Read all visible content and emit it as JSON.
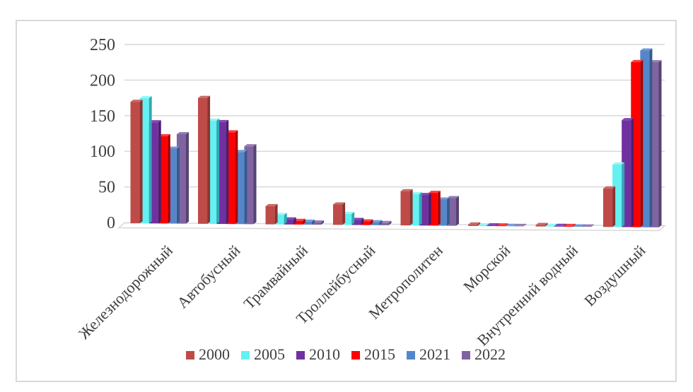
{
  "chart_data": {
    "type": "bar",
    "subtype": "3d-clustered-column",
    "title": "",
    "xlabel": "",
    "ylabel": "",
    "categories": [
      "Железнодорожный",
      "Автобусный",
      "Трамвайный",
      "Троллейбусный",
      "Метрополитен",
      "Морской",
      "Внутренний водный",
      "Воздушный"
    ],
    "series": [
      {
        "name": "2000",
        "color": "#BE4B48",
        "side_color": "#8B3431",
        "top_color": "#C96A66",
        "values": [
          167,
          173,
          25,
          28,
          47,
          2,
          2,
          53
        ]
      },
      {
        "name": "2005",
        "color": "#63F1F1",
        "side_color": "#2FA9B4",
        "top_color": "#97F7F7",
        "values": [
          172,
          142,
          13,
          15,
          43,
          1,
          1,
          86
        ]
      },
      {
        "name": "2010",
        "color": "#7030A0",
        "side_color": "#4A1F6E",
        "top_color": "#8546B6",
        "values": [
          139,
          140,
          7,
          7,
          42,
          1,
          1,
          147
        ]
      },
      {
        "name": "2015",
        "color": "#FE0000",
        "side_color": "#AC0000",
        "top_color": "#FF3B3B",
        "values": [
          120,
          126,
          5,
          5,
          45,
          1,
          1,
          227
        ]
      },
      {
        "name": "2021",
        "color": "#5586CA",
        "side_color": "#38598B",
        "top_color": "#739BD8",
        "values": [
          103,
          99,
          4,
          4,
          36,
          0.5,
          0.5,
          243
        ]
      },
      {
        "name": "2022",
        "color": "#8064A2",
        "side_color": "#564370",
        "top_color": "#957CB6",
        "values": [
          123,
          107,
          3,
          3,
          38,
          0.5,
          0.5,
          227
        ]
      }
    ],
    "y_axis": {
      "min": 0,
      "max": 250,
      "tick_interval": 50,
      "ticks": [
        0,
        50,
        100,
        150,
        200,
        250
      ]
    },
    "legend": {
      "position": "bottom",
      "labels": [
        "2000",
        "2005",
        "2010",
        "2015",
        "2021",
        "2022"
      ]
    },
    "grid": true,
    "colors": {
      "gridline": "#D6D6D6",
      "floor_line": "#D6D6D6",
      "axis_text": "#3F3F3F",
      "category_text": "#3F3F3F",
      "legend_text": "#3F3F3F",
      "frame_border": "#D9D9D9",
      "background": "#FFFFFF"
    }
  }
}
